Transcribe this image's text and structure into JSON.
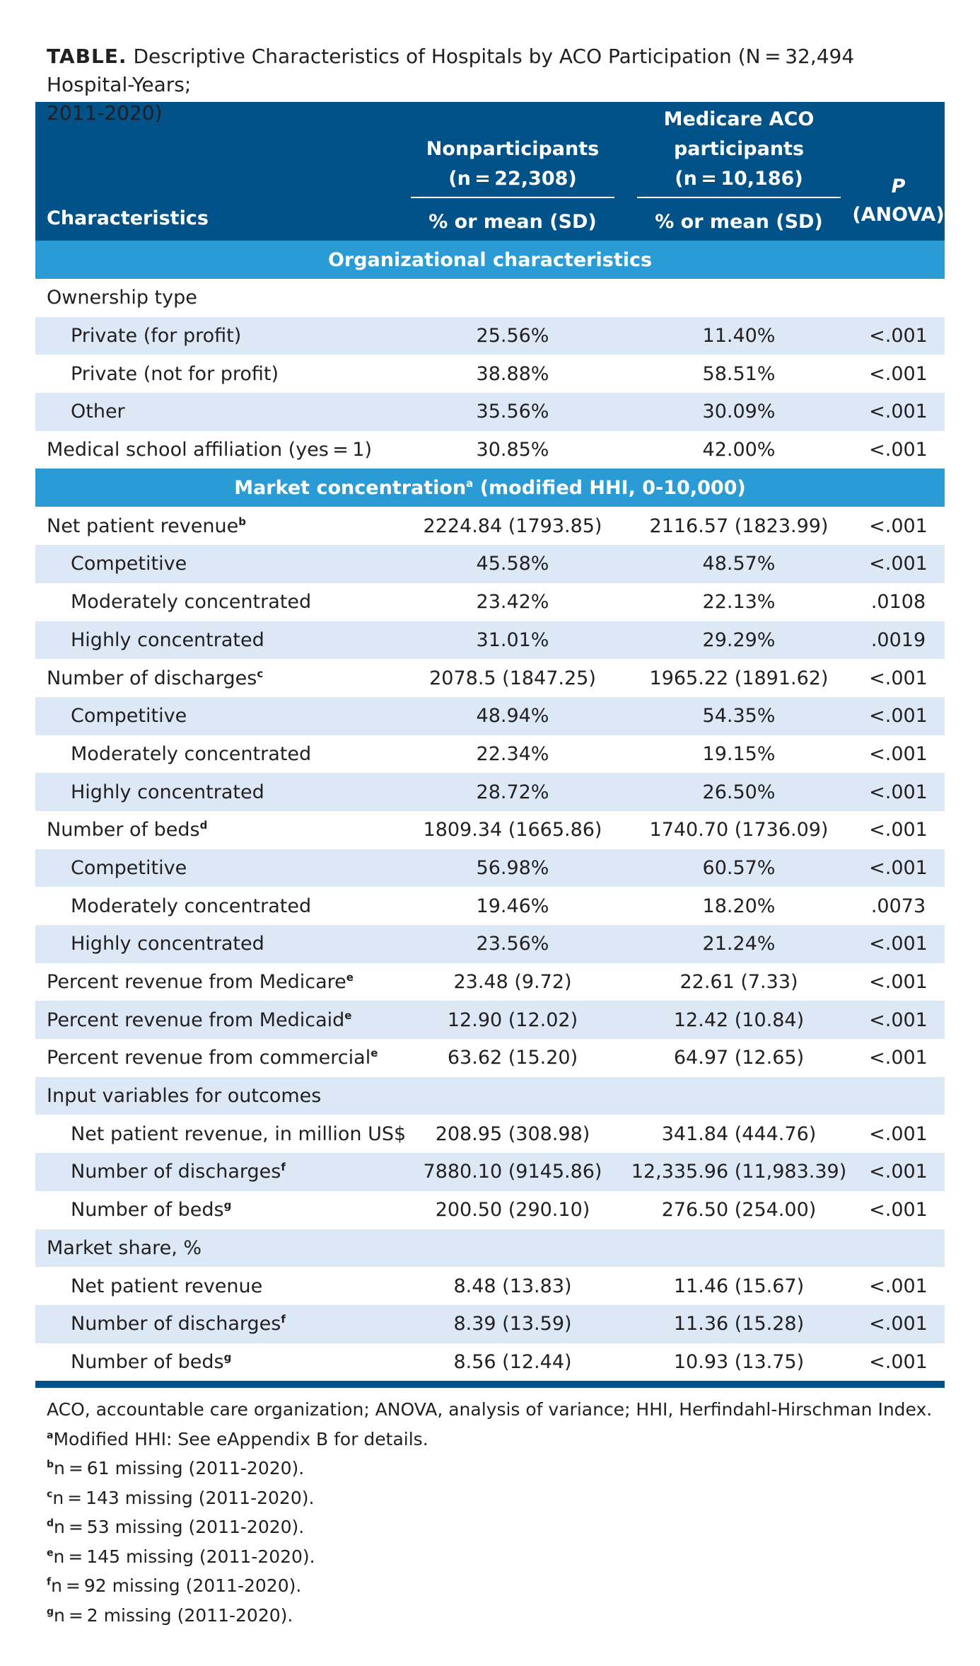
{
  "title": {
    "label": "TABLE.",
    "text": "Descriptive Characteristics of Hospitals by ACO Participation (N = 32,494 Hospital-Years;",
    "text_line2": "2011-2020)"
  },
  "header": {
    "characteristics": "Characteristics",
    "group1_line1": "Nonparticipants",
    "group1_line2": "(n = 22,308)",
    "group2_line1": "Medicare ACO",
    "group2_line2": "participants",
    "group2_line3": "(n = 10,186)",
    "p_label": "P",
    "p_sub": "(ANOVA)",
    "stat1": "% or mean (SD)",
    "stat2": "% or mean (SD)"
  },
  "sections": [
    {
      "title": "Organizational characteristics",
      "rows": [
        {
          "label": "Ownership type",
          "non": "",
          "aco": "",
          "p": "",
          "indent": false
        },
        {
          "label": "Private (for profit)",
          "non": "25.56%",
          "aco": "11.40%",
          "p": "<.001",
          "indent": true
        },
        {
          "label": "Private (not for profit)",
          "non": "38.88%",
          "aco": "58.51%",
          "p": "<.001",
          "indent": true
        },
        {
          "label": "Other",
          "non": "35.56%",
          "aco": "30.09%",
          "p": "<.001",
          "indent": true
        },
        {
          "label": "Medical school affiliation (yes = 1)",
          "non": "30.85%",
          "aco": "42.00%",
          "p": "<.001",
          "indent": false
        }
      ]
    },
    {
      "title": "Market concentration",
      "title_sup": "a",
      "title_rest": " (modified HHI, 0-10,000)",
      "rows": [
        {
          "label": "Net patient revenue",
          "sup": "b",
          "non": "2224.84 (1793.85)",
          "aco": "2116.57 (1823.99)",
          "p": "<.001",
          "indent": false
        },
        {
          "label": "Competitive",
          "non": "45.58%",
          "aco": "48.57%",
          "p": "<.001",
          "indent": true
        },
        {
          "label": "Moderately concentrated",
          "non": "23.42%",
          "aco": "22.13%",
          "p": ".0108",
          "indent": true
        },
        {
          "label": "Highly concentrated",
          "non": "31.01%",
          "aco": "29.29%",
          "p": ".0019",
          "indent": true
        },
        {
          "label": "Number of discharges",
          "sup": "c",
          "non": "2078.5 (1847.25)",
          "aco": "1965.22 (1891.62)",
          "p": "<.001",
          "indent": false
        },
        {
          "label": "Competitive",
          "non": "48.94%",
          "aco": "54.35%",
          "p": "<.001",
          "indent": true
        },
        {
          "label": "Moderately concentrated",
          "non": "22.34%",
          "aco": "19.15%",
          "p": "<.001",
          "indent": true
        },
        {
          "label": "Highly concentrated",
          "non": "28.72%",
          "aco": "26.50%",
          "p": "<.001",
          "indent": true
        },
        {
          "label": "Number of beds",
          "sup": "d",
          "non": "1809.34 (1665.86)",
          "aco": "1740.70 (1736.09)",
          "p": "<.001",
          "indent": false
        },
        {
          "label": "Competitive",
          "non": "56.98%",
          "aco": "60.57%",
          "p": "<.001",
          "indent": true
        },
        {
          "label": "Moderately concentrated",
          "non": "19.46%",
          "aco": "18.20%",
          "p": ".0073",
          "indent": true
        },
        {
          "label": "Highly concentrated",
          "non": "23.56%",
          "aco": "21.24%",
          "p": "<.001",
          "indent": true
        },
        {
          "label": "Percent revenue from Medicare",
          "sup": "e",
          "non": "23.48 (9.72)",
          "aco": "22.61 (7.33)",
          "p": "<.001",
          "indent": false
        },
        {
          "label": "Percent revenue from Medicaid",
          "sup": "e",
          "non": "12.90 (12.02)",
          "aco": "12.42 (10.84)",
          "p": "<.001",
          "indent": false
        },
        {
          "label": "Percent revenue from commercial",
          "sup": "e",
          "non": "63.62 (15.20)",
          "aco": "64.97 (12.65)",
          "p": "<.001",
          "indent": false
        },
        {
          "label": "Input variables for outcomes",
          "non": "",
          "aco": "",
          "p": "",
          "indent": false
        },
        {
          "label": "Net patient revenue, in million US$",
          "non": "208.95 (308.98)",
          "aco": "341.84 (444.76)",
          "p": "<.001",
          "indent": true
        },
        {
          "label": "Number of discharges",
          "sup": "f",
          "non": "7880.10 (9145.86)",
          "aco": "12,335.96 (11,983.39)",
          "p": "<.001",
          "indent": true
        },
        {
          "label": "Number of beds",
          "sup": "g",
          "non": "200.50 (290.10)",
          "aco": "276.50 (254.00)",
          "p": "<.001",
          "indent": true
        },
        {
          "label": "Market share, %",
          "non": "",
          "aco": "",
          "p": "",
          "indent": false
        },
        {
          "label": "Net patient revenue",
          "non": "8.48 (13.83)",
          "aco": "11.46 (15.67)",
          "p": "<.001",
          "indent": true
        },
        {
          "label": "Number of discharges",
          "sup": "f",
          "non": "8.39 (13.59)",
          "aco": "11.36 (15.28)",
          "p": "<.001",
          "indent": true
        },
        {
          "label": "Number of beds",
          "sup": "g",
          "non": "8.56 (12.44)",
          "aco": "10.93 (13.75)",
          "p": "<.001",
          "indent": true
        }
      ]
    }
  ],
  "footnotes": [
    {
      "sup": "",
      "text": "ACO, accountable care organization; ANOVA, analysis of variance; HHI, Herfindahl-Hirschman Index."
    },
    {
      "sup": "a",
      "text": "Modified HHI: See eAppendix B for details."
    },
    {
      "sup": "b",
      "text": "n = 61 missing (2011-2020)."
    },
    {
      "sup": "c",
      "text": "n = 143 missing (2011-2020)."
    },
    {
      "sup": "d",
      "text": "n = 53 missing (2011-2020)."
    },
    {
      "sup": "e",
      "text": "n = 145 missing (2011-2020)."
    },
    {
      "sup": "f",
      "text": "n = 92 missing (2011-2020)."
    },
    {
      "sup": "g",
      "text": "n = 2 missing (2011-2020)."
    }
  ],
  "colors": {
    "header_bg": "#005288",
    "section_bg": "#2b9bd6",
    "shade_row": "#dce8f5"
  }
}
